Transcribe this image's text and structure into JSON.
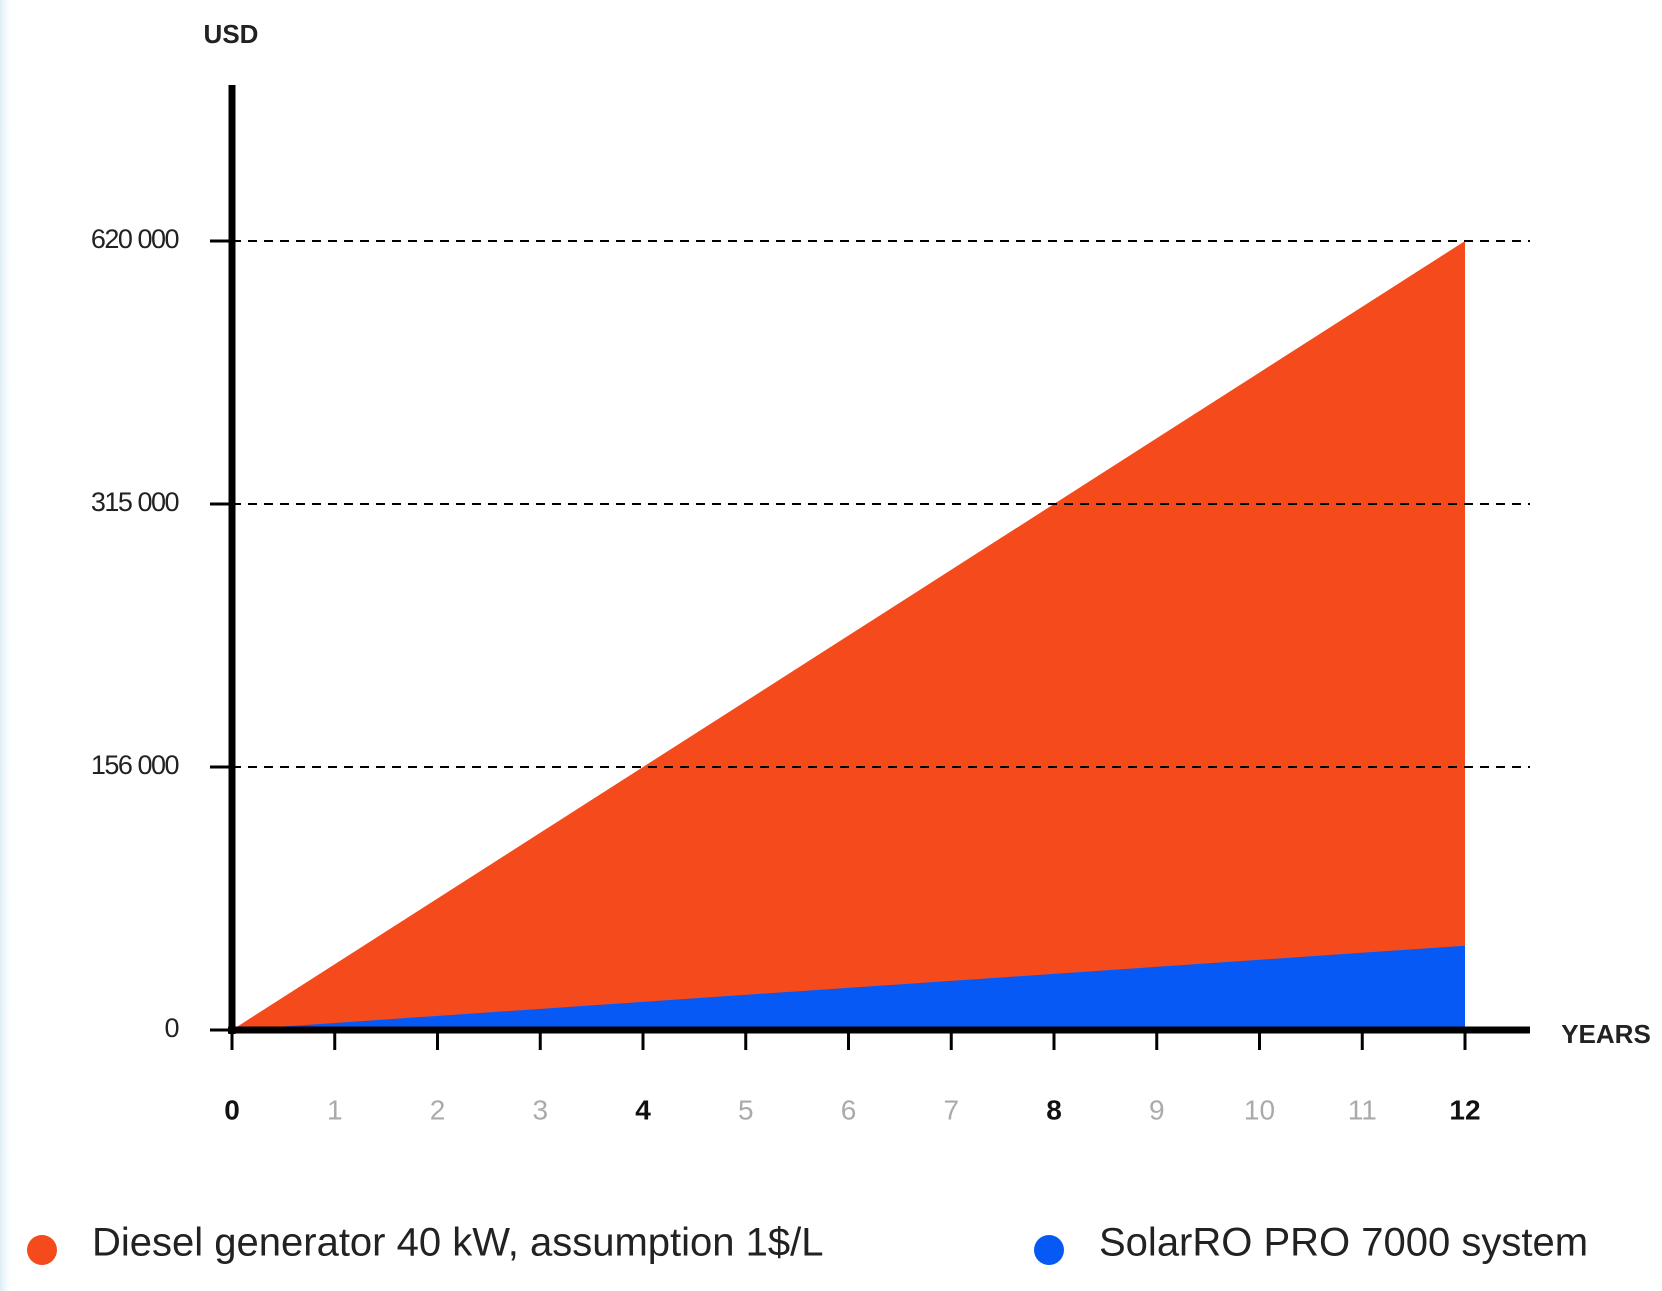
{
  "chart_data": {
    "type": "area",
    "y_label": "USD",
    "x_label": "YEARS",
    "x": [
      0,
      4,
      8,
      12
    ],
    "series": [
      {
        "name": "Diesel generator 40 kW, assumption 1$/L",
        "color": "#f44a1c",
        "values": [
          0,
          156000,
          315000,
          620000
        ]
      },
      {
        "name": "SolarRO PRO 7000 system",
        "color": "#0759f5",
        "values": [
          0,
          16700,
          33300,
          50000
        ]
      }
    ],
    "xlim": [
      0,
      12
    ],
    "xticks": [
      0,
      1,
      2,
      3,
      4,
      5,
      6,
      7,
      8,
      9,
      10,
      11,
      12
    ],
    "ylim": [
      0,
      620000
    ],
    "yticks": [
      0,
      {
        "value": 156000,
        "label": "156 000"
      },
      {
        "value": 315000,
        "label": "315 000"
      },
      {
        "value": 620000,
        "label": "620 000"
      }
    ],
    "grid": true,
    "legend": "bottom"
  }
}
